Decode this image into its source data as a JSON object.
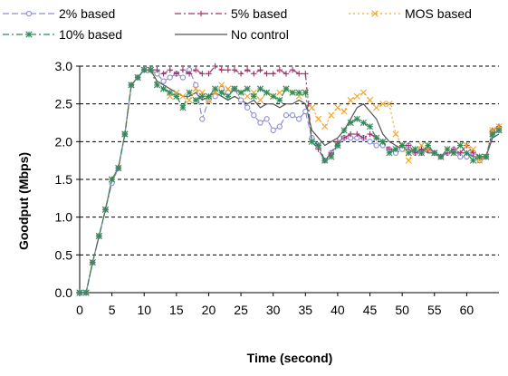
{
  "chart_data": {
    "type": "line",
    "title": "",
    "xlabel": "Time (second)",
    "ylabel": "Goodput (Mbps)",
    "xlim": [
      0,
      65
    ],
    "ylim": [
      0,
      3
    ],
    "xticks": [
      0,
      5,
      10,
      15,
      20,
      25,
      30,
      35,
      40,
      45,
      50,
      55,
      60
    ],
    "yticks": [
      0.0,
      0.5,
      1.0,
      1.5,
      2.0,
      2.5,
      3.0
    ],
    "ytick_labels": [
      "0.0",
      "0.5",
      "1.0",
      "1.5",
      "2.0",
      "2.5",
      "3.0"
    ],
    "grid": "horizontal dashed",
    "legend_position": "top",
    "series": [
      {
        "name": "2% based",
        "color": "#8c8cd9",
        "line_style": "dash",
        "marker": "circle",
        "x": [
          0,
          1,
          2,
          3,
          4,
          5,
          6,
          7,
          8,
          9,
          10,
          11,
          12,
          13,
          14,
          15,
          16,
          17,
          18,
          19,
          20,
          21,
          22,
          23,
          24,
          25,
          26,
          27,
          28,
          29,
          30,
          31,
          32,
          33,
          34,
          35,
          36,
          37,
          38,
          39,
          40,
          41,
          42,
          43,
          44,
          45,
          46,
          47,
          48,
          49,
          50,
          51,
          52,
          53,
          54,
          55,
          56,
          57,
          58,
          59,
          60,
          61,
          62,
          63,
          64,
          65
        ],
        "values": [
          0,
          0,
          0.4,
          0.75,
          1.1,
          1.45,
          1.65,
          2.1,
          2.75,
          2.85,
          2.95,
          2.95,
          2.9,
          2.8,
          2.85,
          2.9,
          2.85,
          2.95,
          2.75,
          2.3,
          2.55,
          2.6,
          2.7,
          2.65,
          2.7,
          2.55,
          2.45,
          2.35,
          2.25,
          2.3,
          2.15,
          2.2,
          2.35,
          2.35,
          2.3,
          2.4,
          2.05,
          1.95,
          1.75,
          1.85,
          1.95,
          2.05,
          2.05,
          2.05,
          2.05,
          2.0,
          1.95,
          1.95,
          1.9,
          1.85,
          1.9,
          1.95,
          1.85,
          1.85,
          1.9,
          1.85,
          1.8,
          1.85,
          1.9,
          1.8,
          1.8,
          1.85,
          1.75,
          1.8,
          2.1,
          2.15
        ]
      },
      {
        "name": "5% based",
        "color": "#a0306a",
        "line_style": "dash-dot",
        "marker": "plus",
        "x": [
          0,
          1,
          2,
          3,
          4,
          5,
          6,
          7,
          8,
          9,
          10,
          11,
          12,
          13,
          14,
          15,
          16,
          17,
          18,
          19,
          20,
          21,
          22,
          23,
          24,
          25,
          26,
          27,
          28,
          29,
          30,
          31,
          32,
          33,
          34,
          35,
          36,
          37,
          38,
          39,
          40,
          41,
          42,
          43,
          44,
          45,
          46,
          47,
          48,
          49,
          50,
          51,
          52,
          53,
          54,
          55,
          56,
          57,
          58,
          59,
          60,
          61,
          62,
          63,
          64,
          65
        ],
        "values": [
          0,
          0,
          0.4,
          0.75,
          1.1,
          1.5,
          1.65,
          2.1,
          2.75,
          2.85,
          2.95,
          2.95,
          2.95,
          2.9,
          2.95,
          2.9,
          2.95,
          2.9,
          2.95,
          2.9,
          2.9,
          3.0,
          2.95,
          2.95,
          2.95,
          2.9,
          2.95,
          2.9,
          2.95,
          2.9,
          2.9,
          2.95,
          2.9,
          2.95,
          2.9,
          2.9,
          2.0,
          1.9,
          1.75,
          1.85,
          2.0,
          2.05,
          2.1,
          2.1,
          2.05,
          2.1,
          2.05,
          2.0,
          1.9,
          1.9,
          1.95,
          1.95,
          1.85,
          1.9,
          1.9,
          1.85,
          1.8,
          1.85,
          1.9,
          1.85,
          1.95,
          1.85,
          1.8,
          1.8,
          2.15,
          2.2
        ]
      },
      {
        "name": "MOS based",
        "color": "#f5a623",
        "line_style": "dot",
        "marker": "x",
        "x": [
          0,
          1,
          2,
          3,
          4,
          5,
          6,
          7,
          8,
          9,
          10,
          11,
          12,
          13,
          14,
          15,
          16,
          17,
          18,
          19,
          20,
          21,
          22,
          23,
          24,
          25,
          26,
          27,
          28,
          29,
          30,
          31,
          32,
          33,
          34,
          35,
          36,
          37,
          38,
          39,
          40,
          41,
          42,
          43,
          44,
          45,
          46,
          47,
          48,
          49,
          50,
          51,
          52,
          53,
          54,
          55,
          56,
          57,
          58,
          59,
          60,
          61,
          62,
          63,
          64,
          65
        ],
        "values": [
          0,
          0,
          0.4,
          0.75,
          1.1,
          1.5,
          1.65,
          2.1,
          2.75,
          2.85,
          2.95,
          2.95,
          2.75,
          2.7,
          2.6,
          2.65,
          2.6,
          2.55,
          2.7,
          2.65,
          2.55,
          2.65,
          2.75,
          2.7,
          2.7,
          2.65,
          2.6,
          2.65,
          2.55,
          2.65,
          2.6,
          2.65,
          2.7,
          2.65,
          2.6,
          2.65,
          2.45,
          2.3,
          2.2,
          2.35,
          2.45,
          2.4,
          2.55,
          2.6,
          2.65,
          2.55,
          2.45,
          2.5,
          2.5,
          2.1,
          1.95,
          1.75,
          1.9,
          1.95,
          1.9,
          1.85,
          1.8,
          1.9,
          1.85,
          1.95,
          1.95,
          1.9,
          1.75,
          1.8,
          2.15,
          2.2
        ]
      },
      {
        "name": "10% based",
        "color": "#2e8b57",
        "line_style": "dash-dot",
        "marker": "asterisk",
        "x": [
          0,
          1,
          2,
          3,
          4,
          5,
          6,
          7,
          8,
          9,
          10,
          11,
          12,
          13,
          14,
          15,
          16,
          17,
          18,
          19,
          20,
          21,
          22,
          23,
          24,
          25,
          26,
          27,
          28,
          29,
          30,
          31,
          32,
          33,
          34,
          35,
          36,
          37,
          38,
          39,
          40,
          41,
          42,
          43,
          44,
          45,
          46,
          47,
          48,
          49,
          50,
          51,
          52,
          53,
          54,
          55,
          56,
          57,
          58,
          59,
          60,
          61,
          62,
          63,
          64,
          65
        ],
        "values": [
          0,
          0,
          0.4,
          0.75,
          1.1,
          1.5,
          1.65,
          2.1,
          2.75,
          2.85,
          2.95,
          2.95,
          2.75,
          2.7,
          2.65,
          2.6,
          2.45,
          2.65,
          2.55,
          2.6,
          2.6,
          2.7,
          2.65,
          2.6,
          2.7,
          2.65,
          2.7,
          2.6,
          2.7,
          2.65,
          2.6,
          2.55,
          2.7,
          2.65,
          2.65,
          2.65,
          2.0,
          1.95,
          1.75,
          1.8,
          1.95,
          2.15,
          2.25,
          2.3,
          2.25,
          2.2,
          2.05,
          2.0,
          1.85,
          1.9,
          1.95,
          1.85,
          1.9,
          1.85,
          1.95,
          1.85,
          1.8,
          1.9,
          1.85,
          1.95,
          1.85,
          1.75,
          1.8,
          1.8,
          2.1,
          2.15
        ]
      },
      {
        "name": "No control",
        "color": "#555555",
        "line_style": "solid",
        "marker": "none",
        "x": [
          0,
          1,
          2,
          3,
          4,
          5,
          6,
          7,
          8,
          9,
          10,
          11,
          12,
          13,
          14,
          15,
          16,
          17,
          18,
          19,
          20,
          21,
          22,
          23,
          24,
          25,
          26,
          27,
          28,
          29,
          30,
          31,
          32,
          33,
          34,
          35,
          36,
          37,
          38,
          39,
          40,
          41,
          42,
          43,
          44,
          45,
          46,
          47,
          48,
          49,
          50,
          51,
          52,
          53,
          54,
          55,
          56,
          57,
          58,
          59,
          60,
          61,
          62,
          63,
          64,
          65
        ],
        "values": [
          0,
          0,
          0.4,
          0.75,
          1.1,
          1.5,
          1.65,
          2.1,
          2.75,
          2.85,
          2.95,
          2.95,
          2.8,
          2.75,
          2.7,
          2.65,
          2.6,
          2.6,
          2.65,
          2.55,
          2.6,
          2.65,
          2.6,
          2.55,
          2.6,
          2.55,
          2.5,
          2.55,
          2.45,
          2.5,
          2.5,
          2.45,
          2.5,
          2.5,
          2.55,
          2.5,
          2.15,
          2.05,
          1.95,
          2.0,
          2.05,
          2.15,
          2.3,
          2.45,
          2.5,
          2.4,
          2.3,
          2.1,
          2.0,
          1.95,
          1.9,
          1.9,
          1.85,
          1.9,
          1.85,
          1.85,
          1.8,
          1.85,
          1.85,
          1.85,
          1.85,
          1.8,
          1.8,
          1.8,
          2.05,
          2.1
        ]
      }
    ]
  }
}
